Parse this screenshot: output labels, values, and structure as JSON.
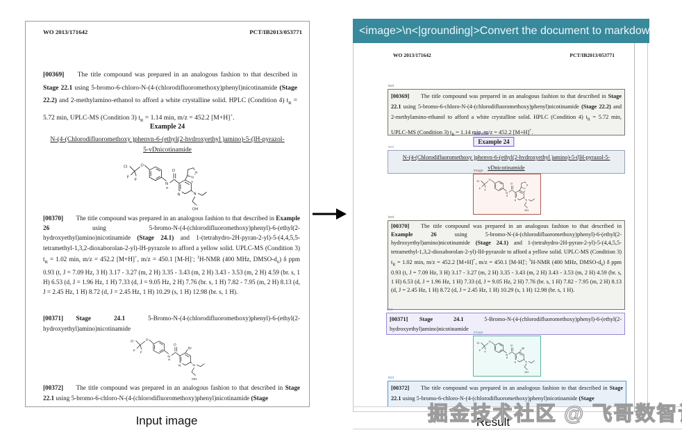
{
  "banner": {
    "text": "<image>\\n<|grounding|>Convert the document to markdown.",
    "bg": "#39899c"
  },
  "captions": {
    "input": "Input image",
    "result": "Result"
  },
  "watermark": "掘金技术社区 @ 飞哥数智谈",
  "grounding": {
    "text_label": "text",
    "subtitle_label": "sub_title",
    "image_label": "image",
    "colors": {
      "text_box": "#75756e",
      "subtitle_box": "#6f5bd0",
      "title_box": "#98a0b2",
      "image_red_box": "#a85a50",
      "lavender_box": "#9488d2",
      "image_teal_box": "#57b0a0",
      "blue_box": "#5b8fc9"
    }
  },
  "doc": {
    "header_left": "WO 2013/171642",
    "header_right": "PCT/IB2013/053771",
    "example_title": "Example 24",
    "compound_title": "N-(4-(Chlorodifluoromethoxy )phenvn-6-(ethyl(2-hvdroxyethyl )amino)-5-(lH-pyrazol-5-vDnicotinamide",
    "p369": [
      {
        "t": "[00369]",
        "b": 1
      },
      {
        "t": "  The title compound was prepared in an analogous fashion to that described in "
      },
      {
        "t": "Stage 22.1",
        "b": 1
      },
      {
        "t": " using 5-bromo-6-chloro-N-(4-(chlorodifluoromethoxy)phenyl)nicotinamide "
      },
      {
        "t": "(Stage 22.2)",
        "b": 1
      },
      {
        "t": " and 2-methylamino-ethanol to afford a white crystalline solid. HPLC (Condition 4) t"
      },
      {
        "t": "R",
        "el": "sub"
      },
      {
        "t": " = 5.72 min, UPLC-MS (Condition 3) t"
      },
      {
        "t": "R",
        "el": "sub"
      },
      {
        "t": " = 1.14 min, m/z = 452.2 [M+H]"
      },
      {
        "t": "+",
        "el": "sup"
      },
      {
        "t": "."
      }
    ],
    "p370": [
      {
        "t": "[00370]",
        "b": 1
      },
      {
        "t": "  The title compound was prepared in an analogous fashion to that described in "
      },
      {
        "t": "Example 26",
        "b": 1
      },
      {
        "t": " using 5-bromo-N-(4-(chlorodifluoromethoxy)phenyl)-6-(ethyl(2-hydroxyethyl)amino)nicotinamide "
      },
      {
        "t": "(Stage 24.1)",
        "b": 1
      },
      {
        "t": " and 1-(tetrahydro-2H-pyran-2-yl)-5-(4,4,5,5-tetramethyl-1,3,2-dioxaborolan-2-yl)-lH-pyrazole to afford a yellow solid. UPLC-MS (Condition 3) t"
      },
      {
        "t": "R",
        "el": "sub"
      },
      {
        "t": " = 1.02 min, m/z = 452.2 [M+H]"
      },
      {
        "t": "+",
        "el": "sup"
      },
      {
        "t": ", m/z = 450.1 [M-H]"
      },
      {
        "t": "-",
        "el": "sup"
      },
      {
        "t": "; "
      },
      {
        "t": "1",
        "el": "sup"
      },
      {
        "t": "H-NMR (400 MHz, DMSO-d"
      },
      {
        "t": "6",
        "el": "sub"
      },
      {
        "t": ") δ ppm 0.93 (t, J = 7.09 Hz, 3 H) 3.17 - 3.27 (m, 2 H) 3.35 - 3.43 (m, 2 H) 3.43 - 3.53 (m, 2 H) 4.59 (br. s, 1 H) 6.53 (d, J = 1.96 Hz, 1 H) 7.33 (d, J = 9.05 Hz, 2 H) 7.76 (br. s, 1 H) 7.82 - 7.95 (m, 2 H) 8.13 (d, J = 2.45 Hz, 1 H) 8.72 (d, J = 2.45 Hz, 1 H) 10.29 (s, 1 H) 12.98 (br. s, 1 H)."
      }
    ],
    "p371": [
      {
        "t": "[00371]",
        "b": 1
      },
      {
        "t": "  "
      },
      {
        "t": "Stage 24.1",
        "b": 1
      },
      {
        "t": " 5-Bromo-N-(4-(chlorodifluoromethoxy)phenyl)-6-(ethyl(2-hydroxyethyl)amino)nicotinamide"
      }
    ],
    "p372": [
      {
        "t": "[00372]",
        "b": 1
      },
      {
        "t": "  The title compound was prepared in an analogous fashion to that described in "
      },
      {
        "t": "Stage 22.1",
        "b": 1
      },
      {
        "t": " using 5-bromo-6-chloro-N-(4-(chlorodifluoromethoxy)phenyl)nicotinamide "
      },
      {
        "t": "(Stage",
        "b": 1
      }
    ]
  },
  "atoms": {
    "cl": "Cl",
    "f": "F",
    "o": "O",
    "n": "N",
    "h": "H",
    "oh": "OH",
    "br": "Br"
  }
}
